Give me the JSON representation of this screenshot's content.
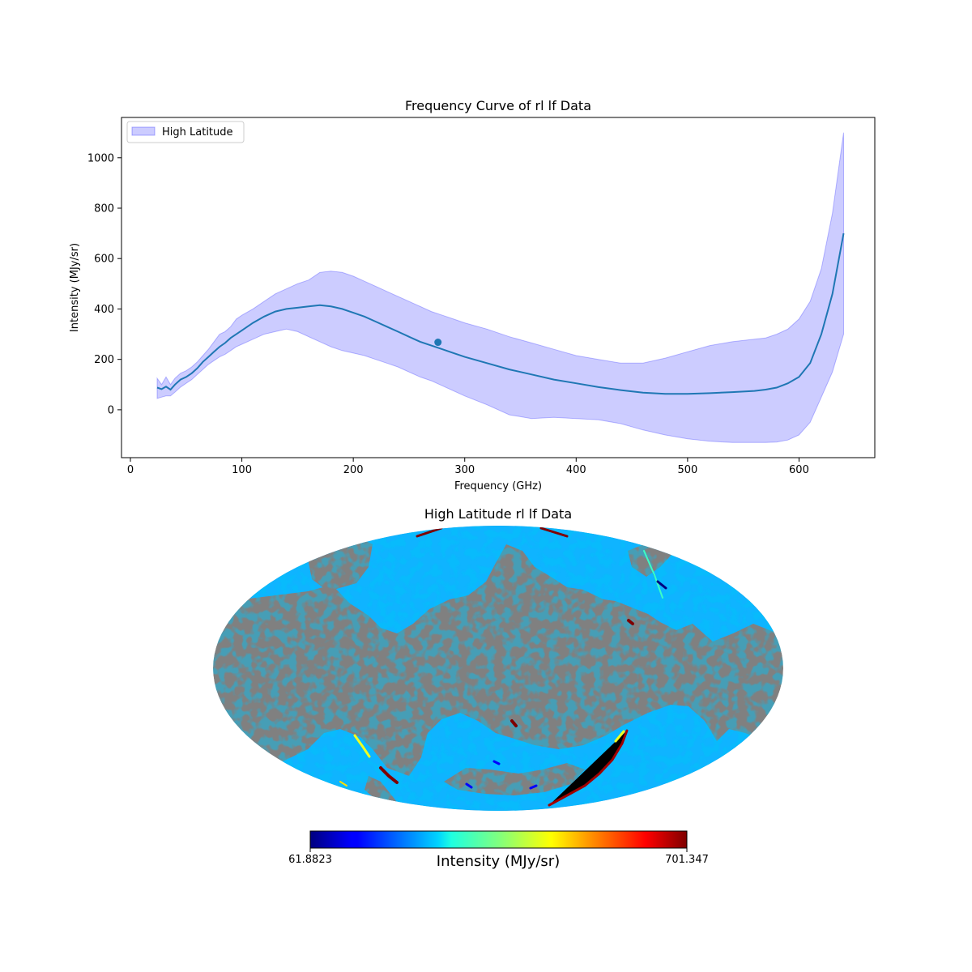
{
  "chart_data": [
    {
      "type": "line",
      "title": "Frequency Curve of rl lf Data",
      "xlabel": "Frequency (GHz)",
      "ylabel": "Intensity (MJy/sr)",
      "xlim": [
        -8,
        668
      ],
      "ylim": [
        -190,
        1160
      ],
      "xticks": [
        0,
        100,
        200,
        300,
        400,
        500,
        600
      ],
      "yticks": [
        0,
        200,
        400,
        600,
        800,
        1000
      ],
      "legend": {
        "placement": "upper-left",
        "entries": [
          "High Latitude"
        ]
      },
      "colors": {
        "line": "#1f77b4",
        "band": "#0000ff"
      },
      "marker": {
        "x": 276,
        "y": 268
      },
      "series": [
        {
          "name": "High Latitude",
          "x": [
            24,
            28,
            32,
            36,
            40,
            45,
            50,
            55,
            60,
            65,
            70,
            75,
            80,
            85,
            90,
            95,
            100,
            110,
            120,
            130,
            140,
            150,
            160,
            170,
            180,
            190,
            200,
            210,
            220,
            230,
            240,
            250,
            260,
            270,
            280,
            290,
            300,
            320,
            340,
            360,
            380,
            400,
            420,
            440,
            460,
            480,
            500,
            520,
            540,
            560,
            570,
            580,
            590,
            600,
            610,
            620,
            630,
            640
          ],
          "mean": [
            88,
            82,
            92,
            80,
            100,
            120,
            130,
            145,
            165,
            190,
            210,
            230,
            250,
            265,
            285,
            300,
            315,
            345,
            370,
            390,
            400,
            405,
            410,
            415,
            410,
            400,
            385,
            370,
            350,
            330,
            310,
            290,
            270,
            255,
            240,
            225,
            210,
            185,
            160,
            140,
            120,
            105,
            90,
            78,
            68,
            63,
            63,
            66,
            70,
            75,
            80,
            88,
            105,
            130,
            185,
            300,
            460,
            700
          ],
          "upper": [
            125,
            100,
            130,
            100,
            125,
            145,
            155,
            170,
            190,
            215,
            240,
            270,
            300,
            310,
            330,
            360,
            375,
            400,
            430,
            460,
            480,
            500,
            515,
            545,
            550,
            545,
            530,
            510,
            490,
            470,
            450,
            430,
            410,
            390,
            375,
            360,
            345,
            320,
            290,
            265,
            240,
            215,
            200,
            185,
            185,
            205,
            230,
            255,
            270,
            280,
            285,
            300,
            320,
            360,
            430,
            560,
            780,
            1100
          ],
          "lower": [
            45,
            50,
            55,
            55,
            70,
            90,
            105,
            120,
            140,
            160,
            180,
            195,
            210,
            220,
            235,
            250,
            260,
            280,
            300,
            310,
            320,
            310,
            290,
            270,
            250,
            235,
            225,
            215,
            200,
            185,
            170,
            150,
            130,
            115,
            95,
            75,
            55,
            20,
            -20,
            -35,
            -30,
            -35,
            -40,
            -55,
            -80,
            -100,
            -115,
            -125,
            -130,
            -130,
            -130,
            -128,
            -120,
            -100,
            -50,
            50,
            150,
            300
          ]
        }
      ]
    },
    {
      "type": "heatmap",
      "projection": "mollweide",
      "title": "High Latitude rl lf Data",
      "colorbar": {
        "label": "Intensity (MJy/sr)",
        "min_label": "61.8823",
        "max_label": "701.347",
        "min": 61.8823,
        "max": 701.347,
        "colormap": "jet"
      },
      "colors": {
        "masked": "#808080",
        "dominant": "#0fb4ff"
      }
    }
  ]
}
